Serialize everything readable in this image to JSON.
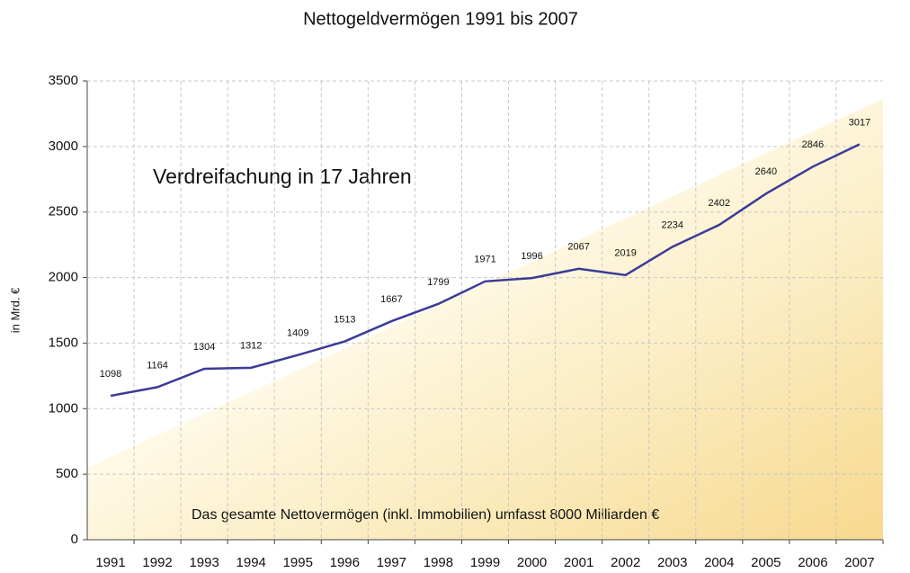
{
  "chart_data": {
    "type": "line",
    "title": "Nettogeldvermögen 1991 bis 2007",
    "y_label": "in Mrd. €",
    "annotations": [
      "Verdreifachung in 17 Jahren",
      "Das gesamte Nettovermögen (inkl. Immobilien) umfasst 8000 Milliarden  €"
    ],
    "categories": [
      "1991",
      "1992",
      "1993",
      "1994",
      "1995",
      "1996",
      "1997",
      "1998",
      "1999",
      "2000",
      "2001",
      "2002",
      "2003",
      "2004",
      "2005",
      "2006",
      "2007"
    ],
    "series": [
      {
        "name": "Nettogeldvermögen",
        "color": "#3b3b98",
        "values": [
          1098,
          1164,
          1304,
          1312,
          1409,
          1513,
          1667,
          1799,
          1971,
          1996,
          2067,
          2019,
          2234,
          2402,
          2640,
          2846,
          3017
        ]
      }
    ],
    "ylim": [
      0,
      3500
    ],
    "yticks": [
      0,
      500,
      1000,
      1500,
      2000,
      2500,
      3000,
      3500
    ],
    "grid": true
  }
}
